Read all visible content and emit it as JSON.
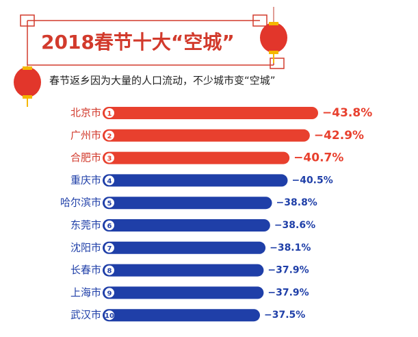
{
  "chart_data": {
    "type": "bar",
    "orientation": "horizontal",
    "title": "2018春节十大“空城”",
    "subtitle": "春节返乡因为大量的人口流动，不少城市变“空城”",
    "categories": [
      "北京市",
      "广州市",
      "合肥市",
      "重庆市",
      "哈尔滨市",
      "东莞市",
      "沈阳市",
      "长春市",
      "上海市",
      "武汉市"
    ],
    "ranks": [
      1,
      2,
      3,
      4,
      5,
      6,
      7,
      8,
      9,
      10
    ],
    "values": [
      -43.8,
      -42.9,
      -40.7,
      -40.5,
      -38.8,
      -38.6,
      -38.1,
      -37.9,
      -37.9,
      -37.5
    ],
    "value_labels": [
      "−43.8%",
      "−42.9%",
      "−40.7%",
      "−40.5%",
      "−38.8%",
      "−38.6%",
      "−38.1%",
      "−37.9%",
      "−37.9%",
      "−37.5%"
    ],
    "colors": [
      "#e8402e",
      "#e8402e",
      "#e8402e",
      "#1f3fa8",
      "#1f3fa8",
      "#1f3fa8",
      "#1f3fa8",
      "#1f3fa8",
      "#1f3fa8",
      "#1f3fa8"
    ]
  }
}
